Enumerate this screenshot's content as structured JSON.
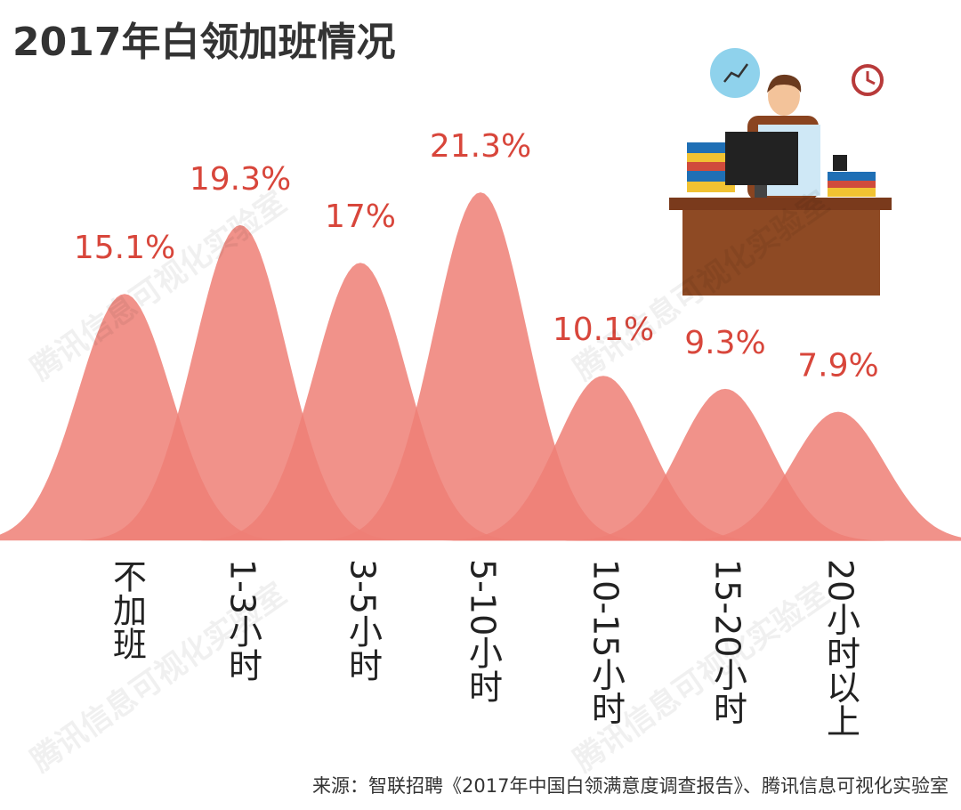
{
  "chart_data": {
    "type": "area",
    "title": "2017年白领加班情况",
    "categories": [
      "不加班",
      "1-3小时",
      "3-5小时",
      "5-10小时",
      "10-15小时",
      "15-20小时",
      "20小时以上"
    ],
    "values": [
      15.1,
      19.3,
      17,
      21.3,
      10.1,
      9.3,
      7.9
    ],
    "value_labels": [
      "15.1%",
      "19.3%",
      "17%",
      "21.3%",
      "10.1%",
      "9.3%",
      "7.9%"
    ],
    "color": "#ef7f76",
    "label_color": "#d8463b",
    "source": "来源：智联招聘《2017年中国白领满意度调查报告》、腾讯信息可视化实验室",
    "watermark": "腾讯信息可视化实验室"
  }
}
